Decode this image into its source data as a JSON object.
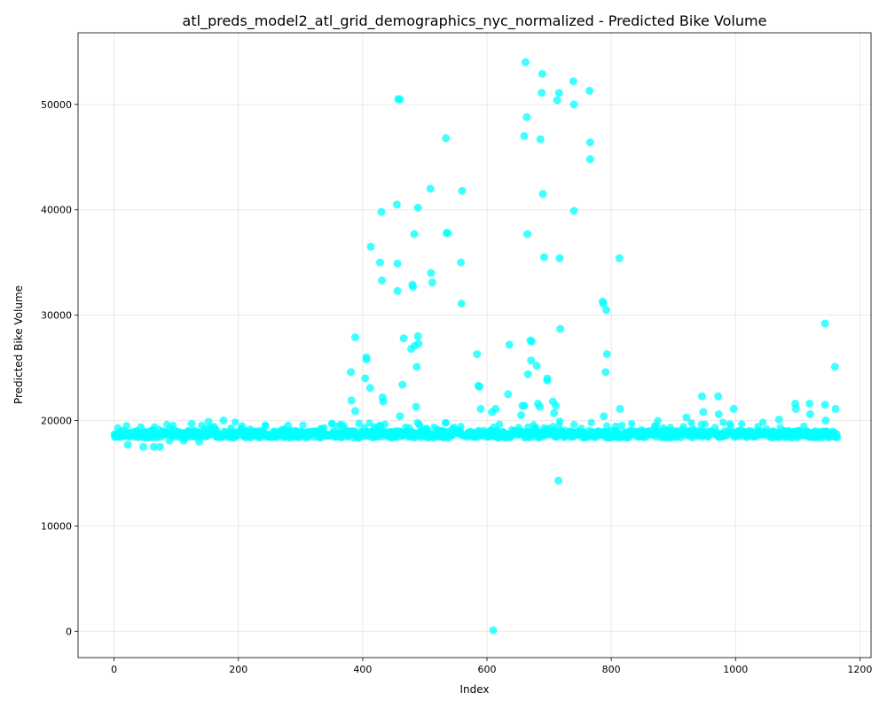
{
  "chart_data": {
    "type": "scatter",
    "title": "atl_preds_model2_atl_grid_demographics_nyc_normalized - Predicted Bike Volume",
    "xlabel": "Index",
    "ylabel": "Predicted Bike Volume",
    "xlim": [
      -58,
      1218
    ],
    "ylim": [
      -2500,
      56800
    ],
    "xticks": [
      0,
      200,
      400,
      600,
      800,
      1000,
      1200
    ],
    "yticks": [
      0,
      10000,
      20000,
      30000,
      40000,
      50000
    ],
    "xtick_labels": [
      "0",
      "200",
      "400",
      "600",
      "800",
      "1000",
      "1200"
    ],
    "ytick_labels": [
      "0",
      "10000",
      "20000",
      "30000",
      "40000",
      "50000"
    ],
    "grid": true,
    "color": "#00ffff",
    "baseline_band": {
      "x_start": 0,
      "x_end": 1164,
      "y_center": 18700
    },
    "points": [
      [
        22,
        17700
      ],
      [
        47,
        17500
      ],
      [
        64,
        17500
      ],
      [
        74,
        17500
      ],
      [
        89,
        18100
      ],
      [
        112,
        18100
      ],
      [
        125,
        19700
      ],
      [
        137,
        18000
      ],
      [
        152,
        19900
      ],
      [
        176,
        20000
      ],
      [
        381,
        24600
      ],
      [
        382,
        21900
      ],
      [
        388,
        27900
      ],
      [
        388,
        20900
      ],
      [
        404,
        24000
      ],
      [
        406,
        26000
      ],
      [
        406,
        25800
      ],
      [
        412,
        23100
      ],
      [
        413,
        36500
      ],
      [
        428,
        35000
      ],
      [
        430,
        39800
      ],
      [
        431,
        33300
      ],
      [
        432,
        22200
      ],
      [
        433,
        21800
      ],
      [
        455,
        40500
      ],
      [
        456,
        34900
      ],
      [
        456,
        32300
      ],
      [
        457,
        50500
      ],
      [
        460,
        50500
      ],
      [
        460,
        20400
      ],
      [
        464,
        23400
      ],
      [
        466,
        27800
      ],
      [
        478,
        26800
      ],
      [
        480,
        32900
      ],
      [
        481,
        32700
      ],
      [
        483,
        37700
      ],
      [
        484,
        27100
      ],
      [
        486,
        21300
      ],
      [
        487,
        25100
      ],
      [
        489,
        40200
      ],
      [
        489,
        28000
      ],
      [
        490,
        27300
      ],
      [
        509,
        42000
      ],
      [
        510,
        34000
      ],
      [
        512,
        33100
      ],
      [
        534,
        46800
      ],
      [
        535,
        37800
      ],
      [
        537,
        37800
      ],
      [
        558,
        35000
      ],
      [
        559,
        31100
      ],
      [
        560,
        41800
      ],
      [
        584,
        26300
      ],
      [
        586,
        23300
      ],
      [
        588,
        23200
      ],
      [
        590,
        21100
      ],
      [
        608,
        20800
      ],
      [
        610,
        100
      ],
      [
        614,
        21100
      ],
      [
        634,
        22500
      ],
      [
        636,
        27200
      ],
      [
        655,
        20500
      ],
      [
        657,
        21400
      ],
      [
        660,
        21400
      ],
      [
        660,
        47000
      ],
      [
        662,
        54000
      ],
      [
        664,
        48800
      ],
      [
        665,
        37700
      ],
      [
        666,
        24400
      ],
      [
        670,
        27600
      ],
      [
        671,
        25700
      ],
      [
        672,
        27500
      ],
      [
        680,
        25200
      ],
      [
        682,
        21600
      ],
      [
        685,
        21300
      ],
      [
        686,
        46700
      ],
      [
        688,
        51100
      ],
      [
        689,
        52900
      ],
      [
        690,
        41500
      ],
      [
        692,
        35500
      ],
      [
        697,
        24000
      ],
      [
        697,
        23800
      ],
      [
        706,
        21800
      ],
      [
        708,
        20700
      ],
      [
        711,
        21400
      ],
      [
        713,
        50400
      ],
      [
        715,
        14300
      ],
      [
        716,
        51100
      ],
      [
        717,
        35400
      ],
      [
        718,
        28700
      ],
      [
        739,
        52200
      ],
      [
        740,
        50000
      ],
      [
        740,
        39900
      ],
      [
        765,
        51300
      ],
      [
        766,
        46400
      ],
      [
        766,
        44800
      ],
      [
        786,
        31300
      ],
      [
        787,
        31100
      ],
      [
        788,
        20400
      ],
      [
        791,
        24600
      ],
      [
        792,
        30500
      ],
      [
        793,
        26300
      ],
      [
        813,
        35400
      ],
      [
        814,
        21100
      ],
      [
        921,
        20300
      ],
      [
        946,
        22300
      ],
      [
        948,
        20800
      ],
      [
        972,
        22300
      ],
      [
        973,
        20600
      ],
      [
        997,
        21100
      ],
      [
        1070,
        20100
      ],
      [
        1096,
        21600
      ],
      [
        1097,
        21100
      ],
      [
        1119,
        21600
      ],
      [
        1120,
        20600
      ],
      [
        1144,
        29200
      ],
      [
        1144,
        21500
      ],
      [
        1145,
        20000
      ],
      [
        1160,
        25100
      ],
      [
        1161,
        21100
      ]
    ]
  }
}
